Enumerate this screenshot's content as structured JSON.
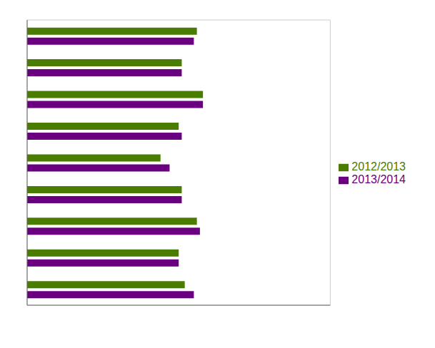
{
  "chart_data": {
    "type": "bar",
    "orientation": "horizontal",
    "categories": [
      null,
      null,
      null,
      null,
      null,
      null,
      null,
      null,
      null
    ],
    "series": [
      {
        "name": "2012/2013",
        "color": "#4a7c00",
        "values": [
          52,
          50,
          56,
          51,
          44,
          50,
          58,
          51,
          56
        ]
      },
      {
        "name": "2013/2014",
        "color": "#6a0080",
        "values": [
          55,
          50,
          57,
          51,
          47,
          51,
          58,
          51,
          55
        ]
      }
    ],
    "xlim": [
      0,
      100
    ],
    "xticks": [
      0,
      20,
      40,
      60,
      80,
      100
    ],
    "grid": true,
    "legend": "right",
    "tick_labels": false
  }
}
